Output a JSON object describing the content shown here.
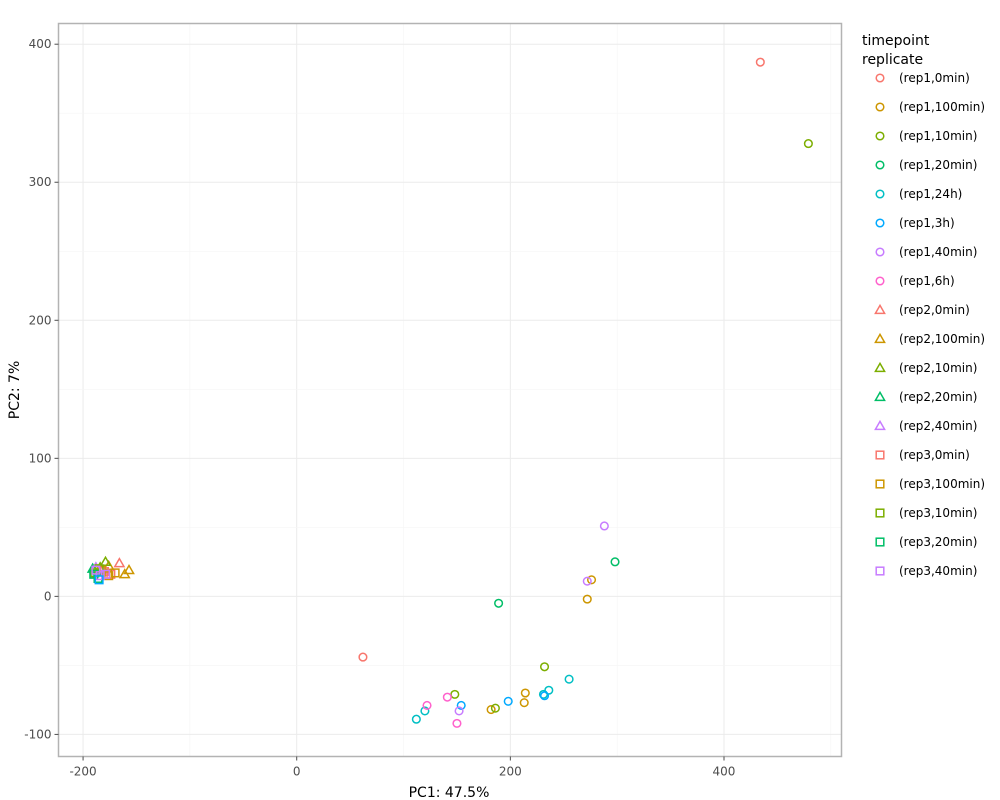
{
  "chart_data": {
    "type": "scatter",
    "title": "",
    "xlabel": "PC1: 47.5%",
    "ylabel": "PC2: 7%",
    "xlim": [
      -223,
      510
    ],
    "ylim": [
      -116,
      415
    ],
    "x_ticks": [
      -200,
      0,
      200,
      400
    ],
    "x_tick_labels": [
      "-200",
      "0",
      "200",
      "400"
    ],
    "y_ticks": [
      -100,
      0,
      100,
      200,
      300,
      400
    ],
    "y_tick_labels": [
      "-100",
      "0",
      "100",
      "200",
      "300",
      "400"
    ],
    "grid": true,
    "legend_position": "right",
    "legend_title": [
      "timepoint",
      "replicate"
    ],
    "series": [
      {
        "name": "(rep1,0min)",
        "color": "#F8766D",
        "shape": "circle",
        "points": [
          [
            434,
            387
          ],
          [
            62,
            -44
          ]
        ]
      },
      {
        "name": "(rep1,100min)",
        "color": "#CD9600",
        "shape": "circle",
        "points": [
          [
            276,
            12
          ],
          [
            272,
            -2
          ],
          [
            214,
            -70
          ],
          [
            213,
            -77
          ],
          [
            182,
            -82
          ]
        ]
      },
      {
        "name": "(rep1,10min)",
        "color": "#7CAE00",
        "shape": "circle",
        "points": [
          [
            479,
            328
          ],
          [
            232,
            -51
          ],
          [
            148,
            -71
          ],
          [
            186,
            -81
          ]
        ]
      },
      {
        "name": "(rep1,20min)",
        "color": "#00BE67",
        "shape": "circle",
        "points": [
          [
            298,
            25
          ],
          [
            189,
            -5
          ]
        ]
      },
      {
        "name": "(rep1,24h)",
        "color": "#00BFC4",
        "shape": "circle",
        "points": [
          [
            255,
            -60
          ],
          [
            236,
            -68
          ],
          [
            231,
            -71
          ],
          [
            112,
            -89
          ],
          [
            120,
            -83
          ]
        ]
      },
      {
        "name": "(rep1,3h)",
        "color": "#00A9FF",
        "shape": "circle",
        "points": [
          [
            198,
            -76
          ],
          [
            232,
            -72
          ],
          [
            154,
            -79
          ]
        ]
      },
      {
        "name": "(rep1,40min)",
        "color": "#C77CFF",
        "shape": "circle",
        "points": [
          [
            288,
            51
          ],
          [
            272,
            11
          ],
          [
            152,
            -83
          ]
        ]
      },
      {
        "name": "(rep1,6h)",
        "color": "#FF61CC",
        "shape": "circle",
        "points": [
          [
            141,
            -73
          ],
          [
            122,
            -79
          ],
          [
            150,
            -92
          ]
        ]
      },
      {
        "name": "(rep2,0min)",
        "color": "#F8766D",
        "shape": "triangle",
        "points": [
          [
            -166,
            24
          ]
        ]
      },
      {
        "name": "(rep2,100min)",
        "color": "#CD9600",
        "shape": "triangle",
        "points": [
          [
            -157,
            19
          ],
          [
            -161,
            16
          ],
          [
            -176,
            22
          ]
        ]
      },
      {
        "name": "(rep2,10min)",
        "color": "#7CAE00",
        "shape": "triangle",
        "points": [
          [
            -179,
            25
          ],
          [
            -184,
            21
          ]
        ]
      },
      {
        "name": "(rep2,20min)",
        "color": "#00BE67",
        "shape": "triangle",
        "points": [
          [
            -191,
            20
          ],
          [
            -186,
            18
          ]
        ]
      },
      {
        "name": "(rep2,40min)",
        "color": "#C77CFF",
        "shape": "triangle",
        "points": [
          [
            -188,
            21
          ],
          [
            -182,
            19
          ]
        ]
      },
      {
        "name": "(rep3,0min)",
        "color": "#F8766D",
        "shape": "square",
        "points": [
          [
            -180,
            18
          ],
          [
            -174,
            16
          ]
        ]
      },
      {
        "name": "(rep3,100min)",
        "color": "#CD9600",
        "shape": "square",
        "points": [
          [
            -170,
            17
          ],
          [
            -176,
            15
          ],
          [
            -183,
            19
          ]
        ]
      },
      {
        "name": "(rep3,10min)",
        "color": "#7CAE00",
        "shape": "square",
        "points": [
          [
            -189,
            17
          ],
          [
            -185,
            20
          ]
        ]
      },
      {
        "name": "(rep3,20min)",
        "color": "#00BE67",
        "shape": "square",
        "points": [
          [
            -190,
            16
          ],
          [
            -186,
            13
          ]
        ]
      },
      {
        "name": "(rep3,40min)",
        "color": "#C77CFF",
        "shape": "square",
        "points": [
          [
            -179,
            16
          ],
          [
            -184,
            15
          ],
          [
            -188,
            19
          ]
        ]
      }
    ],
    "extra_points": [
      {
        "color": "#00A9FF",
        "shape": "square",
        "points": [
          [
            -185,
            12
          ]
        ]
      }
    ]
  }
}
